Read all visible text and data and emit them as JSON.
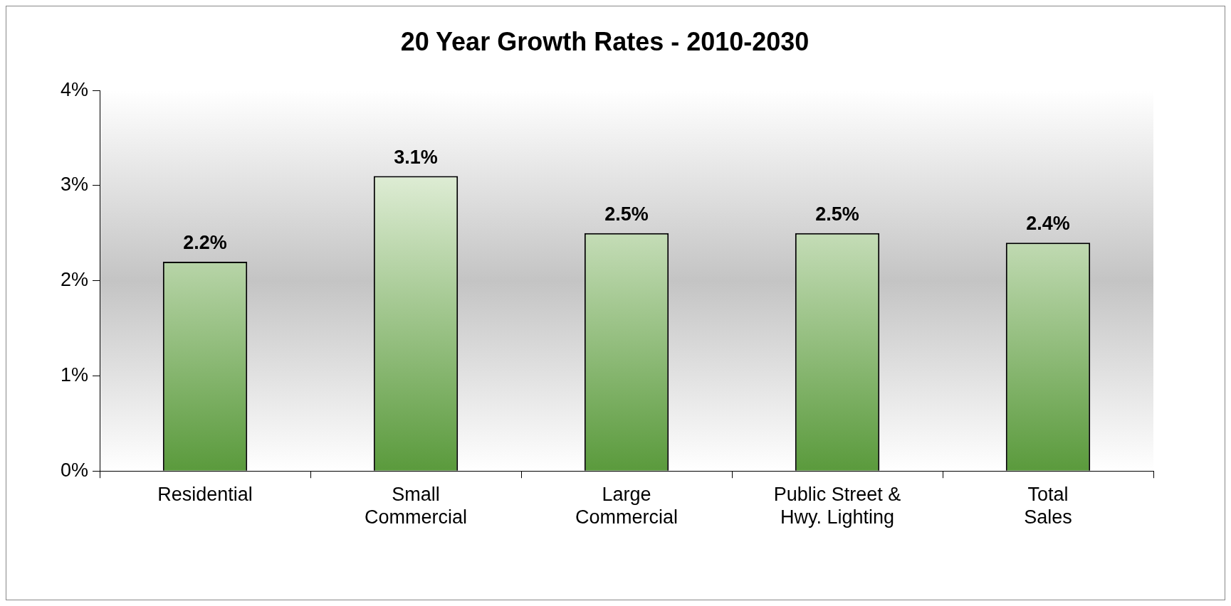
{
  "chart_data": {
    "type": "bar",
    "title": "20 Year Growth Rates - 2010-2030",
    "categories": [
      "Residential",
      "Small\nCommercial",
      "Large\nCommercial",
      "Public Street &\nHwy. Lighting",
      "Total\nSales"
    ],
    "values": [
      2.2,
      3.1,
      2.5,
      2.5,
      2.4
    ],
    "value_labels": [
      "2.2%",
      "3.1%",
      "2.5%",
      "2.5%",
      "2.4%"
    ],
    "color": "#5a9a3c",
    "ylim": [
      0,
      4
    ],
    "yticks": [
      {
        "value": 0,
        "label": "0%"
      },
      {
        "value": 1,
        "label": "1%"
      },
      {
        "value": 2,
        "label": "2%"
      },
      {
        "value": 3,
        "label": "3%"
      },
      {
        "value": 4,
        "label": "4%"
      }
    ],
    "legend": false
  }
}
